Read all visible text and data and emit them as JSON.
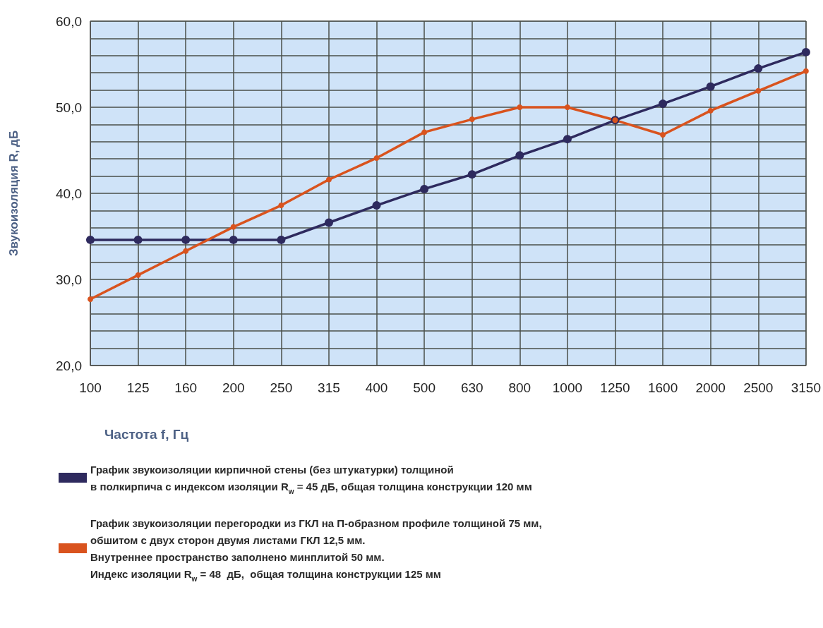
{
  "chart_data": {
    "type": "line",
    "xlabel": "Частота f, Гц",
    "ylabel": "Звукоизоляция R, дБ",
    "categories": [
      "100",
      "125",
      "160",
      "200",
      "250",
      "315",
      "400",
      "500",
      "630",
      "800",
      "1000",
      "1250",
      "1600",
      "2000",
      "2500",
      "3150"
    ],
    "series": [
      {
        "name": "График звукоизоляции кирпичной стены (без штукатурки) толщиной\nв полкирпича с индексом изоляции R$_{w}$ = 45 дБ, общая толщина конструкции 120 мм",
        "color": "#2e2a5e",
        "values": [
          34.6,
          34.6,
          34.6,
          34.6,
          34.6,
          36.6,
          38.6,
          40.5,
          42.2,
          44.4,
          46.3,
          48.5,
          50.4,
          52.4,
          54.5,
          56.4
        ]
      },
      {
        "name": "График звукоизоляции перегородки из ГКЛ на П-образном профиле толщиной 75 мм,\nобшитом с двух сторон двумя листами ГКЛ 12,5 мм.\nВнутреннее пространство заполнено минплитой 50 мм.\nИндекс изоляции R$_{w}$ = 48  дБ,  общая толщина конструкции 125 мм",
        "color": "#d9531e",
        "values": [
          27.7,
          30.5,
          33.3,
          36.1,
          38.6,
          41.6,
          44.1,
          47.1,
          48.6,
          50.0,
          50.0,
          48.5,
          46.8,
          49.6,
          51.9,
          54.2
        ]
      }
    ],
    "ylim": [
      20,
      60
    ],
    "yticks": [
      {
        "value": 20,
        "label": "20,0"
      },
      {
        "value": 22,
        "label": null
      },
      {
        "value": 24,
        "label": null
      },
      {
        "value": 26,
        "label": null
      },
      {
        "value": 28,
        "label": null
      },
      {
        "value": 30,
        "label": "30,0"
      },
      {
        "value": 32,
        "label": null
      },
      {
        "value": 34,
        "label": null
      },
      {
        "value": 36,
        "label": null
      },
      {
        "value": 38,
        "label": null
      },
      {
        "value": 40,
        "label": "40,0"
      },
      {
        "value": 42,
        "label": null
      },
      {
        "value": 44,
        "label": null
      },
      {
        "value": 46,
        "label": null
      },
      {
        "value": 48,
        "label": null
      },
      {
        "value": 50,
        "label": "50,0"
      },
      {
        "value": 52,
        "label": null
      },
      {
        "value": 54,
        "label": null
      },
      {
        "value": 56,
        "label": null
      },
      {
        "value": 58,
        "label": null
      },
      {
        "value": 60,
        "label": "60,0"
      }
    ],
    "grid": true,
    "legend": "bottom left",
    "marker": "circle",
    "line_style": "solid"
  }
}
